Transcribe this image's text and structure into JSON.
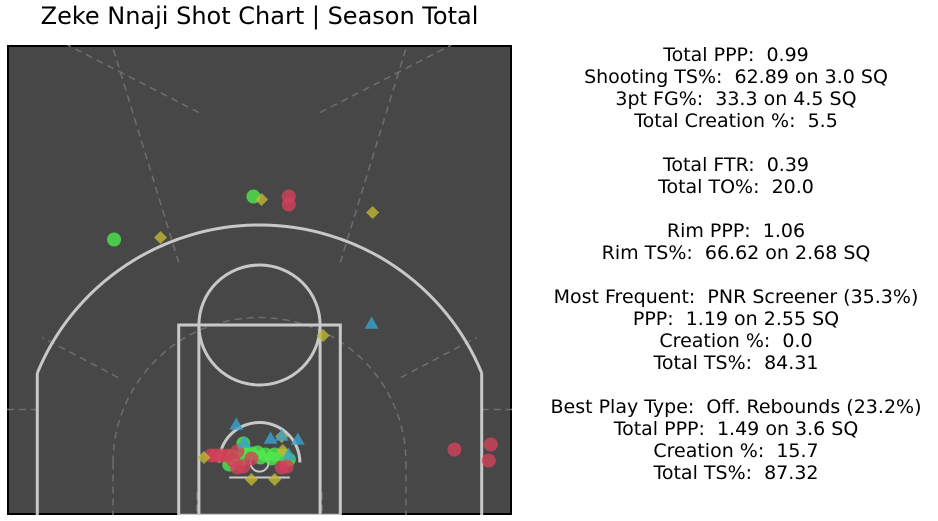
{
  "title": "Zeke Nnaji Shot Chart | Season Total",
  "colors": {
    "court_bg": "#474747",
    "court_lines": "#c8c8c8",
    "guide_lines": "#6e6e6e",
    "made": "#4ee84e",
    "missed": "#d2415a",
    "free_throw": "#c2b634",
    "other": "#3aa3cc"
  },
  "stats": [
    "Total PPP:  0.99",
    "Shooting TS%:  62.89 on 3.0 SQ",
    "3pt FG%:  33.3 on 4.5 SQ",
    "Total Creation %:  5.5",
    "",
    "Total FTR:  0.39",
    "Total TO%:  20.0",
    "",
    "Rim PPP:  1.06",
    "Rim TS%:  66.62 on 2.68 SQ",
    "",
    "Most Frequent:  PNR Screener (35.3%)",
    "PPP:  1.19 on 2.55 SQ",
    "Creation %:  0.0",
    "Total TS%:  84.31",
    "",
    "Best Play Type:  Off. Rebounds (23.2%)",
    "Total PPP:  1.49 on 3.6 SQ",
    "Creation %:  15.7",
    "Total TS%:  87.32"
  ],
  "chart_data": {
    "type": "scatter",
    "title": "Zeke Nnaji Shot Chart | Season Total",
    "xlabel": "",
    "ylabel": "",
    "units": "feet from basket center (x: sideline to sideline, y: toward half court)",
    "xlim": [
      -25,
      25
    ],
    "ylim": [
      -5.25,
      41.75
    ],
    "grid": false,
    "legend": "none",
    "series": [
      {
        "name": "made",
        "marker": "circle",
        "color": "#4ee84e",
        "points": [
          [
            -14.4,
            22.3
          ],
          [
            -0.6,
            26.6
          ],
          [
            -1.6,
            1.9
          ],
          [
            -1.8,
            0.3
          ],
          [
            -0.8,
            0.9
          ],
          [
            -0.2,
            1.0
          ],
          [
            0.1,
            0.5
          ],
          [
            0.6,
            0.8
          ],
          [
            1.2,
            0.4
          ],
          [
            1.5,
            0.8
          ],
          [
            2.3,
            0.7
          ],
          [
            2.9,
            0.3
          ],
          [
            -2.7,
            0.6
          ],
          [
            -1.5,
            1.1
          ],
          [
            -3.0,
            -0.2
          ]
        ]
      },
      {
        "name": "missed",
        "marker": "circle",
        "color": "#d2415a",
        "points": [
          [
            2.9,
            26.6
          ],
          [
            2.9,
            25.8
          ],
          [
            -4.8,
            0.7
          ],
          [
            -4.3,
            0.7
          ],
          [
            -3.7,
            0.7
          ],
          [
            -3.1,
            0.7
          ],
          [
            -2.2,
            1.1
          ],
          [
            -2.2,
            -0.5
          ],
          [
            -1.6,
            -0.4
          ],
          [
            -0.8,
            0.4
          ],
          [
            2.2,
            -0.5
          ],
          [
            2.7,
            -0.4
          ],
          [
            19.3,
            1.3
          ],
          [
            22.9,
            1.8
          ],
          [
            22.7,
            0.2
          ],
          [
            -2.6,
            0.2
          ]
        ]
      },
      {
        "name": "free throw / foul drawn",
        "marker": "diamond",
        "color": "#c2b634",
        "points": [
          [
            -9.8,
            22.5
          ],
          [
            0.2,
            26.3
          ],
          [
            11.2,
            25.0
          ],
          [
            6.3,
            12.7
          ],
          [
            -5.5,
            0.5
          ],
          [
            2.2,
            2.6
          ],
          [
            2.3,
            1.2
          ],
          [
            -0.8,
            -1.7
          ],
          [
            1.5,
            -1.7
          ]
        ]
      },
      {
        "name": "other",
        "marker": "triangle",
        "color": "#3aa3cc",
        "points": [
          [
            11.1,
            13.9
          ],
          [
            -2.3,
            3.8
          ],
          [
            2.2,
            2.7
          ],
          [
            1.1,
            2.4
          ],
          [
            3.8,
            2.3
          ],
          [
            -1.5,
            2.0
          ],
          [
            2.9,
            0.8
          ]
        ]
      }
    ]
  }
}
